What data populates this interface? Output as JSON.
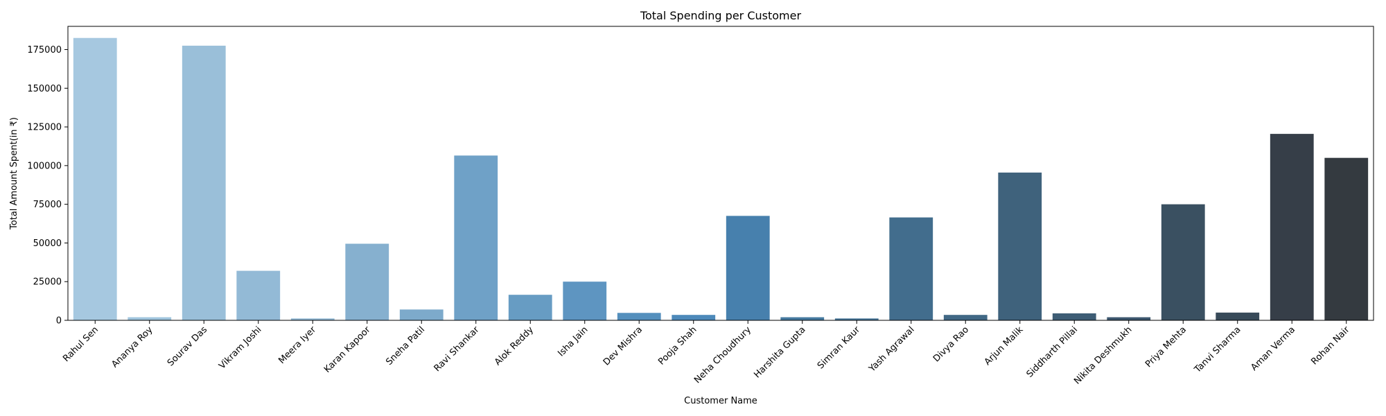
{
  "chart_data": {
    "type": "bar",
    "title": "Total Spending per Customer",
    "xlabel": "Customer Name",
    "ylabel": "Total Amount Spent(in ₹)",
    "ylim": [
      0,
      190000
    ],
    "yticks": [
      0,
      25000,
      50000,
      75000,
      100000,
      125000,
      150000,
      175000
    ],
    "grid": false,
    "legend": "none",
    "palette": "Blues_d",
    "categories": [
      "Rahul Sen",
      "Ananya Roy",
      "Sourav Das",
      "Vikram Joshi",
      "Meera Iyer",
      "Karan Kapoor",
      "Sneha Patil",
      "Ravi Shankar",
      "Alok Reddy",
      "Isha Jain",
      "Dev Mishra",
      "Pooja Shah",
      "Neha Choudhury",
      "Harshita Gupta",
      "Simran Kaur",
      "Yash Agrawal",
      "Divya Rao",
      "Arjun Malik",
      "Siddharth Pillai",
      "Nikita Deshmukh",
      "Priya Mehta",
      "Tanvi Sharma",
      "Aman Verma",
      "Rohan Nair"
    ],
    "values": [
      182500,
      2000,
      177500,
      32000,
      1200,
      49500,
      7000,
      106500,
      16500,
      25000,
      4800,
      3500,
      67500,
      2000,
      1200,
      66500,
      3500,
      95500,
      4500,
      2000,
      75000,
      5000,
      120500,
      105000
    ],
    "colors": [
      "#a6c8e0",
      "#a0c4dd",
      "#9abfd9",
      "#93bad6",
      "#8db5d2",
      "#86b0cf",
      "#7daacb",
      "#6fa1c7",
      "#679cc3",
      "#5e95c1",
      "#548fbd",
      "#4d89ba",
      "#4780ad",
      "#45799f",
      "#437396",
      "#426d8d",
      "#416885",
      "#3f627c",
      "#3e5d75",
      "#3d576e",
      "#3a5061",
      "#384a59",
      "#363e48",
      "#343a40"
    ]
  }
}
